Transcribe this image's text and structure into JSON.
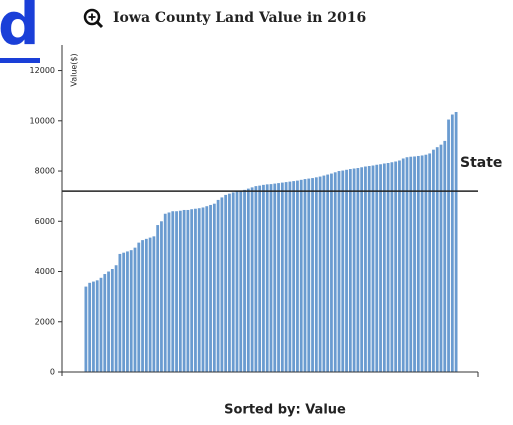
{
  "chart_data": {
    "type": "bar",
    "title": "Iowa County Land Value in 2016",
    "y_label": "Value($)",
    "x_label": "Sorted by: Value",
    "reference_line": {
      "label": "State",
      "value": 7200
    },
    "link_text": "d",
    "values": [
      3400,
      3550,
      3600,
      3650,
      3750,
      3900,
      4000,
      4100,
      4250,
      4700,
      4750,
      4800,
      4850,
      4950,
      5150,
      5250,
      5300,
      5350,
      5400,
      5850,
      6000,
      6300,
      6350,
      6400,
      6400,
      6420,
      6450,
      6450,
      6480,
      6500,
      6520,
      6550,
      6600,
      6650,
      6700,
      6850,
      6950,
      7050,
      7100,
      7150,
      7200,
      7220,
      7250,
      7300,
      7350,
      7400,
      7420,
      7450,
      7470,
      7480,
      7500,
      7520,
      7540,
      7560,
      7580,
      7600,
      7620,
      7650,
      7680,
      7700,
      7720,
      7750,
      7780,
      7820,
      7860,
      7900,
      7950,
      8000,
      8020,
      8050,
      8080,
      8100,
      8120,
      8150,
      8180,
      8200,
      8220,
      8250,
      8270,
      8300,
      8320,
      8350,
      8380,
      8420,
      8500,
      8550,
      8570,
      8580,
      8600,
      8620,
      8650,
      8700,
      8850,
      8950,
      9050,
      9200,
      10050,
      10250,
      10350
    ],
    "color": "#6a9bd0",
    "ylim": [
      0,
      13000
    ],
    "yticks": [
      0,
      2000,
      4000,
      6000,
      8000,
      10000,
      12000
    ]
  }
}
